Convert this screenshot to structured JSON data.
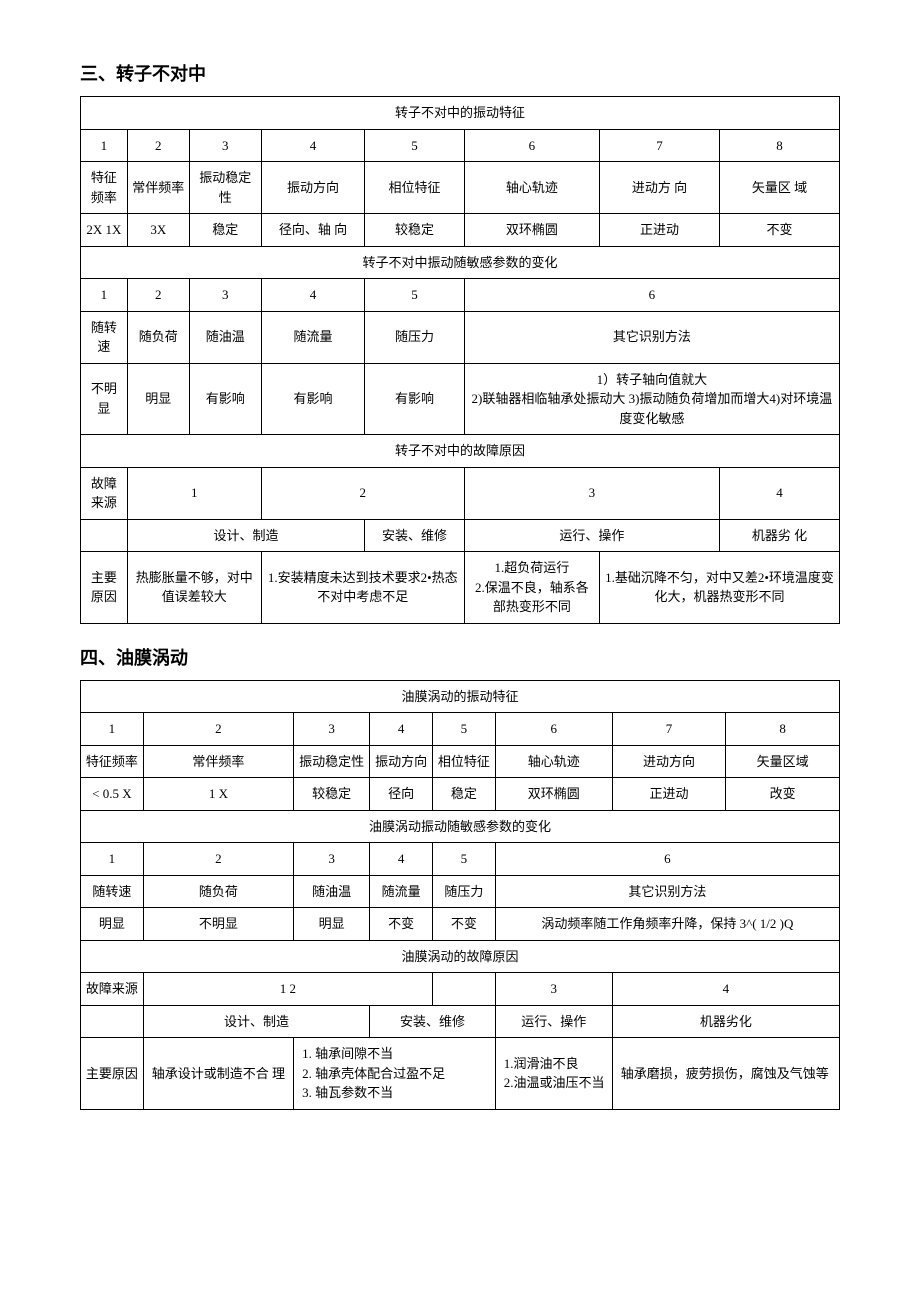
{
  "section3": {
    "heading": "三、转子不对中",
    "table1": {
      "title": "转子不对中的振动特征",
      "nums": [
        "1",
        "2",
        "3",
        "4",
        "5",
        "6",
        "7",
        "8"
      ],
      "headers": [
        "特征频率",
        "常伴频率",
        "振动稳定性",
        "振动方向",
        "相位特征",
        "轴心轨迹",
        "进动方 向",
        "矢量区 域"
      ],
      "values": [
        "2X 1X",
        "3X",
        "稳定",
        "径向、轴 向",
        "较稳定",
        "双环椭圆",
        "正进动",
        "不变"
      ]
    },
    "table2": {
      "title": "转子不对中振动随敏感参数的变化",
      "nums": [
        "1",
        "2",
        "3",
        "4",
        "5",
        "6"
      ],
      "headers": [
        "随转速",
        "随负荷",
        "随油温",
        "随流量",
        "随压力",
        "其它识别方法"
      ],
      "values": [
        "不明显",
        "明显",
        "有影响",
        "有影响",
        "有影响",
        "1）转子轴向值就大\n2)联轴器相临轴承处振动大  3)振动随负荷增加而增大4)对环境温度变化敏感"
      ]
    },
    "table3": {
      "title": "转子不对中的故障原因",
      "row1": [
        "故障来源",
        "1",
        "2",
        "3",
        "4"
      ],
      "row2": [
        "",
        "设计、制造",
        "安装、维修",
        "运行、操作",
        "机器劣 化"
      ],
      "row3_label": "主要原因",
      "row3": [
        "热膨胀量不够，对中值误差较大",
        "1.安装精度未达到技术要求2•热态不对中考虑不足",
        "1.超负荷运行\n2.保温不良，轴系各部热变形不同",
        "1.基础沉降不匀，对中又差2•环境温度变化大，机器热变形不同"
      ]
    }
  },
  "section4": {
    "heading": "四、油膜涡动",
    "table1": {
      "title": "油膜涡动的振动特征",
      "nums": [
        "1",
        "2",
        "3",
        "4",
        "5",
        "6",
        "7",
        "8"
      ],
      "headers": [
        "特征频率",
        "常伴频率",
        "振动稳定性",
        "振动方向",
        "相位特征",
        "轴心轨迹",
        "进动方向",
        "矢量区域"
      ],
      "values": [
        "< 0.5 X",
        "1 X",
        "较稳定",
        "径向",
        "稳定",
        "双环椭圆",
        "正进动",
        "改变"
      ]
    },
    "table2": {
      "title": "油膜涡动振动随敏感参数的变化",
      "nums": [
        "1",
        "2",
        "3",
        "4",
        "5",
        "6"
      ],
      "headers": [
        "随转速",
        "随负荷",
        "随油温",
        "随流量",
        "随压力",
        "其它识别方法"
      ],
      "values": [
        "明显",
        "不明显",
        "明显",
        "不变",
        "不变",
        "涡动频率随工作角频率升降，保持    3^( 1/2 )Q"
      ]
    },
    "table3": {
      "title": "油膜涡动的故障原因",
      "row1": [
        "故障来源",
        "1 2",
        "",
        "3",
        "4"
      ],
      "row2": [
        "",
        "设计、制造",
        "安装、维修",
        "运行、操作",
        "机器劣化"
      ],
      "row3_label": "主要原因",
      "row3_c1": "轴承设计或制造不合 理",
      "row3_c2": "1. 轴承间隙不当\n2. 轴承壳体配合过盈不足\n3. 轴瓦参数不当",
      "row3_c3": "1.润滑油不良\n2.油温或油压不当",
      "row3_c4": "轴承磨损，疲劳损伤，腐蚀及气蚀等"
    }
  }
}
